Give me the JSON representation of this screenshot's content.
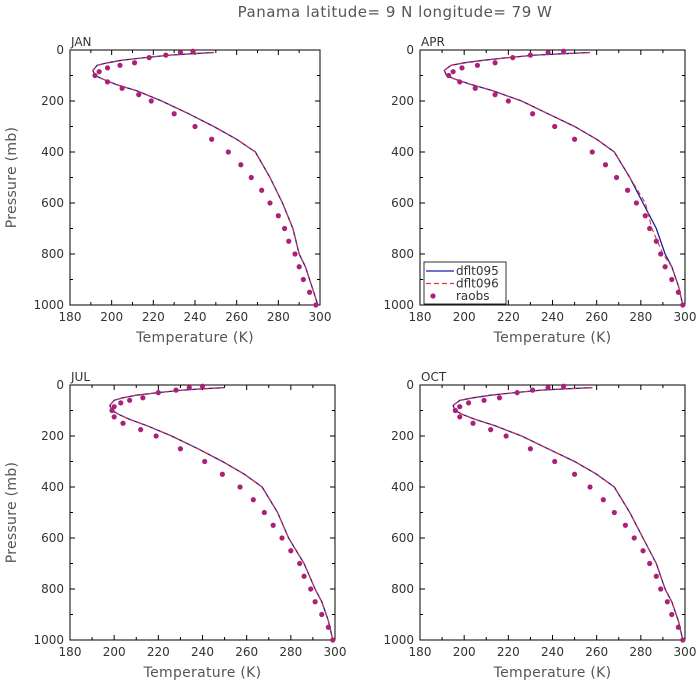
{
  "figure": {
    "title": "Panama  latitude= 9 N longitude= 79 W"
  },
  "legend": {
    "entries": [
      {
        "label": "dflt095",
        "color": "#1a1aaa",
        "style": "solid"
      },
      {
        "label": "dflt096",
        "color": "#e03030",
        "style": "dashed"
      },
      {
        "label": "raobs",
        "color": "#aa2277",
        "style": "marker"
      }
    ]
  },
  "chart_data": [
    {
      "type": "line",
      "panel": "JAN",
      "xlabel": "Temperature (K)",
      "ylabel": "Pressure (mb)",
      "xlim": [
        180,
        300
      ],
      "ylim": [
        1000,
        0
      ],
      "xticks": [
        180,
        200,
        220,
        240,
        260,
        280,
        300
      ],
      "yticks": [
        0,
        200,
        400,
        600,
        800,
        1000
      ],
      "series": [
        {
          "name": "dflt095",
          "color": "#1a1aaa",
          "style": "solid",
          "x": [
            249,
            238,
            228,
            216,
            205,
            198,
            193,
            191,
            192,
            196,
            202,
            212,
            224,
            237,
            249,
            260,
            269,
            276,
            282,
            287,
            290,
            293,
            296,
            299
          ],
          "y": [
            10,
            15,
            20,
            30,
            40,
            50,
            60,
            80,
            100,
            115,
            135,
            160,
            200,
            250,
            300,
            350,
            400,
            500,
            600,
            700,
            800,
            850,
            925,
            1000
          ]
        },
        {
          "name": "dflt096",
          "color": "#e03030",
          "style": "dashed",
          "x": [
            249,
            238,
            228,
            216,
            205,
            198,
            193,
            191,
            192,
            196,
            202,
            212,
            224,
            237,
            249,
            260,
            269,
            276,
            282,
            287,
            290,
            293,
            296,
            299
          ],
          "y": [
            10,
            15,
            20,
            30,
            40,
            50,
            60,
            80,
            100,
            115,
            135,
            160,
            200,
            250,
            300,
            350,
            400,
            500,
            600,
            700,
            800,
            850,
            925,
            1000
          ]
        },
        {
          "name": "raobs",
          "color": "#aa2277",
          "style": "marker",
          "x": [
            239,
            233,
            226,
            218,
            211,
            204,
            198,
            194,
            192,
            198,
            205,
            213,
            219,
            230,
            240,
            248,
            256,
            262,
            267,
            272,
            276,
            280,
            283,
            285,
            288,
            290,
            292,
            295,
            298
          ],
          "y": [
            5,
            10,
            20,
            30,
            50,
            60,
            70,
            85,
            100,
            125,
            150,
            175,
            200,
            250,
            300,
            350,
            400,
            450,
            500,
            550,
            600,
            650,
            700,
            750,
            800,
            850,
            900,
            950,
            1000
          ]
        }
      ]
    },
    {
      "type": "line",
      "panel": "APR",
      "xlabel": "Temperature (K)",
      "ylabel": "",
      "xlim": [
        180,
        300
      ],
      "ylim": [
        1000,
        0
      ],
      "xticks": [
        180,
        200,
        220,
        240,
        260,
        280,
        300
      ],
      "yticks": [
        0,
        200,
        400,
        600,
        800,
        1000
      ],
      "series": [
        {
          "name": "dflt095",
          "color": "#1a1aaa",
          "style": "solid",
          "x": [
            257,
            244,
            232,
            220,
            209,
            200,
            194,
            191,
            192,
            196,
            203,
            213,
            226,
            238,
            250,
            260,
            268,
            275,
            281,
            287,
            291,
            294,
            297,
            299
          ],
          "y": [
            10,
            15,
            20,
            30,
            40,
            50,
            60,
            80,
            100,
            115,
            135,
            160,
            200,
            250,
            300,
            350,
            400,
            500,
            600,
            700,
            800,
            850,
            925,
            1000
          ]
        },
        {
          "name": "dflt096",
          "color": "#e03030",
          "style": "dashed",
          "x": [
            257,
            244,
            232,
            220,
            209,
            200,
            194,
            191,
            192,
            196,
            203,
            213,
            226,
            238,
            250,
            260,
            268,
            275,
            282,
            285,
            290,
            294,
            297,
            299
          ],
          "y": [
            10,
            15,
            20,
            30,
            40,
            50,
            60,
            80,
            100,
            115,
            135,
            160,
            200,
            250,
            300,
            350,
            400,
            500,
            600,
            700,
            800,
            850,
            925,
            1000
          ]
        },
        {
          "name": "raobs",
          "color": "#aa2277",
          "style": "marker",
          "x": [
            245,
            238,
            230,
            222,
            214,
            206,
            199,
            195,
            193,
            198,
            205,
            214,
            220,
            231,
            241,
            250,
            258,
            264,
            269,
            274,
            278,
            282,
            284,
            287,
            289,
            291,
            294,
            297,
            299
          ],
          "y": [
            5,
            10,
            20,
            30,
            50,
            60,
            70,
            85,
            100,
            125,
            150,
            175,
            200,
            250,
            300,
            350,
            400,
            450,
            500,
            550,
            600,
            650,
            700,
            750,
            800,
            850,
            900,
            950,
            1000
          ]
        }
      ]
    },
    {
      "type": "line",
      "panel": "JUL",
      "xlabel": "Temperature (K)",
      "ylabel": "Pressure (mb)",
      "xlim": [
        180,
        300
      ],
      "ylim": [
        1000,
        0
      ],
      "xticks": [
        180,
        200,
        220,
        240,
        260,
        280,
        300
      ],
      "yticks": [
        0,
        200,
        400,
        600,
        800,
        1000
      ],
      "series": [
        {
          "name": "dflt095",
          "color": "#1a1aaa",
          "style": "solid",
          "x": [
            250,
            240,
            231,
            220,
            210,
            204,
            200,
            198,
            199,
            202,
            207,
            215,
            226,
            238,
            249,
            259,
            267,
            274,
            279,
            286,
            291,
            294,
            297,
            299
          ],
          "y": [
            10,
            15,
            20,
            30,
            40,
            50,
            60,
            80,
            100,
            115,
            135,
            160,
            200,
            250,
            300,
            350,
            400,
            500,
            600,
            700,
            800,
            850,
            925,
            1000
          ]
        },
        {
          "name": "dflt096",
          "color": "#e03030",
          "style": "dashed",
          "x": [
            250,
            240,
            231,
            220,
            210,
            204,
            200,
            198,
            199,
            202,
            207,
            215,
            226,
            238,
            249,
            259,
            267,
            274,
            279,
            286,
            291,
            294,
            297,
            299
          ],
          "y": [
            10,
            15,
            20,
            30,
            40,
            50,
            60,
            80,
            100,
            115,
            135,
            160,
            200,
            250,
            300,
            350,
            400,
            500,
            600,
            700,
            800,
            850,
            925,
            1000
          ]
        },
        {
          "name": "raobs",
          "color": "#aa2277",
          "style": "marker",
          "x": [
            240,
            234,
            228,
            220,
            213,
            207,
            203,
            200,
            199,
            200,
            204,
            212,
            219,
            230,
            241,
            249,
            257,
            263,
            268,
            272,
            276,
            280,
            284,
            286,
            289,
            291,
            294,
            297,
            299
          ],
          "y": [
            5,
            10,
            20,
            30,
            50,
            60,
            70,
            85,
            100,
            125,
            150,
            175,
            200,
            250,
            300,
            350,
            400,
            450,
            500,
            550,
            600,
            650,
            700,
            750,
            800,
            850,
            900,
            950,
            1000
          ]
        }
      ]
    },
    {
      "type": "line",
      "panel": "OCT",
      "xlabel": "Temperature (K)",
      "ylabel": "",
      "xlim": [
        180,
        300
      ],
      "ylim": [
        1000,
        0
      ],
      "xticks": [
        180,
        200,
        220,
        240,
        260,
        280,
        300
      ],
      "yticks": [
        0,
        200,
        400,
        600,
        800,
        1000
      ],
      "series": [
        {
          "name": "dflt095",
          "color": "#1a1aaa",
          "style": "solid",
          "x": [
            258,
            246,
            235,
            223,
            212,
            204,
            198,
            195,
            196,
            199,
            205,
            214,
            226,
            238,
            250,
            260,
            268,
            275,
            281,
            287,
            291,
            294,
            297,
            299
          ],
          "y": [
            10,
            15,
            20,
            30,
            40,
            50,
            60,
            80,
            100,
            115,
            135,
            160,
            200,
            250,
            300,
            350,
            400,
            500,
            600,
            700,
            800,
            850,
            925,
            1000
          ]
        },
        {
          "name": "dflt096",
          "color": "#e03030",
          "style": "dashed",
          "x": [
            258,
            246,
            235,
            223,
            212,
            204,
            198,
            195,
            196,
            199,
            205,
            214,
            226,
            238,
            250,
            260,
            268,
            275,
            281,
            287,
            291,
            294,
            297,
            299
          ],
          "y": [
            10,
            15,
            20,
            30,
            40,
            50,
            60,
            80,
            100,
            115,
            135,
            160,
            200,
            250,
            300,
            350,
            400,
            500,
            600,
            700,
            800,
            850,
            925,
            1000
          ]
        },
        {
          "name": "raobs",
          "color": "#aa2277",
          "style": "marker",
          "x": [
            245,
            238,
            231,
            224,
            216,
            209,
            202,
            198,
            196,
            198,
            204,
            212,
            219,
            230,
            241,
            250,
            257,
            263,
            268,
            273,
            277,
            281,
            284,
            287,
            289,
            292,
            294,
            297,
            299
          ],
          "y": [
            5,
            10,
            20,
            30,
            50,
            60,
            70,
            85,
            100,
            125,
            150,
            175,
            200,
            250,
            300,
            350,
            400,
            450,
            500,
            550,
            600,
            650,
            700,
            750,
            800,
            850,
            900,
            950,
            1000
          ]
        }
      ]
    }
  ]
}
